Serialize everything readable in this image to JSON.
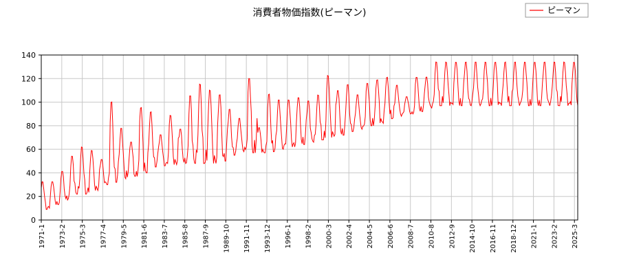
{
  "chart_data": {
    "type": "line",
    "title": "消費者物価指数(ピーマン)",
    "xlabel": "",
    "ylabel": "",
    "ylim": [
      0,
      140
    ],
    "yticks": [
      0,
      20,
      40,
      60,
      80,
      100,
      120,
      140
    ],
    "grid": true,
    "legend_position": "top-right",
    "x_tick_labels": [
      "1971-1",
      "1973-2",
      "1975-3",
      "1977-4",
      "1979-5",
      "1981-6",
      "1983-7",
      "1985-8",
      "1987-9",
      "1989-10",
      "1991-11",
      "1993-12",
      "1996-1",
      "1998-2",
      "2000-3",
      "2002-4",
      "2004-5",
      "2006-6",
      "2008-7",
      "2010-8",
      "2012-9",
      "2014-10",
      "2016-11",
      "2018-12",
      "2021-1",
      "2023-2",
      "2025-3"
    ],
    "x_start": "1971-1",
    "x_end": "2025-7",
    "series": [
      {
        "name": "ピーマン",
        "color": "#ff0000",
        "yearly_peaks": [
          33,
          33,
          42,
          55,
          63,
          60,
          52,
          102,
          79,
          67,
          97,
          93,
          73,
          90,
          78,
          107,
          117,
          112,
          108,
          95,
          87,
          122,
          79,
          108,
          103,
          103,
          105,
          102,
          107,
          124,
          111,
          116,
          107,
          117,
          120,
          122,
          115,
          105,
          122,
          122,
          135
        ],
        "yearly_troughs": [
          9,
          13,
          17,
          22,
          22,
          25,
          30,
          32,
          35,
          37,
          40,
          45,
          46,
          47,
          48,
          48,
          48,
          48,
          50,
          55,
          58,
          57,
          57,
          58,
          60,
          62,
          64,
          66,
          68,
          70,
          72,
          75,
          77,
          80,
          82,
          86,
          88,
          90,
          92,
          95,
          97
        ]
      }
    ]
  }
}
